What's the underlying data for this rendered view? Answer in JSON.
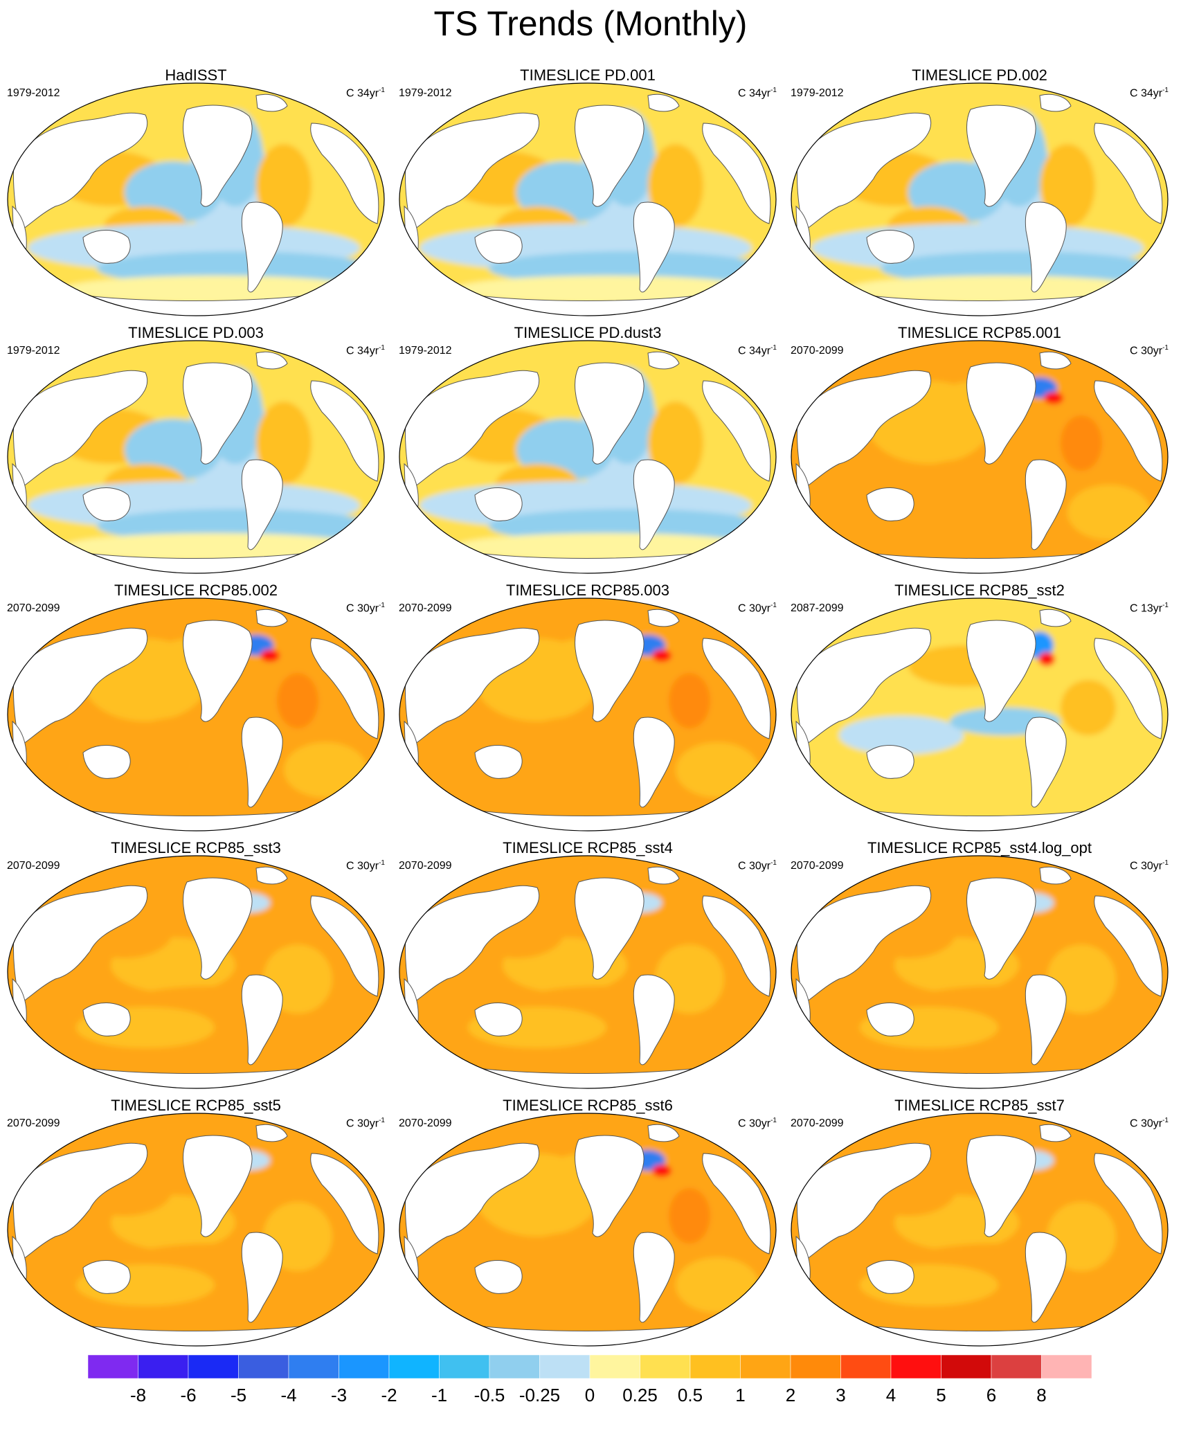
{
  "title": "TS Trends (Monthly)",
  "panels": [
    {
      "title": "HadISST",
      "period": "1979-2012",
      "units_base": "C 34yr",
      "units_exp": "-1",
      "pattern": "obs"
    },
    {
      "title": "TIMESLICE PD.001",
      "period": "1979-2012",
      "units_base": "C 34yr",
      "units_exp": "-1",
      "pattern": "obs"
    },
    {
      "title": "TIMESLICE PD.002",
      "period": "1979-2012",
      "units_base": "C 34yr",
      "units_exp": "-1",
      "pattern": "obs"
    },
    {
      "title": "TIMESLICE PD.003",
      "period": "1979-2012",
      "units_base": "C 34yr",
      "units_exp": "-1",
      "pattern": "obs"
    },
    {
      "title": "TIMESLICE PD.dust3",
      "period": "1979-2012",
      "units_base": "C 34yr",
      "units_exp": "-1",
      "pattern": "obs"
    },
    {
      "title": "TIMESLICE RCP85.001",
      "period": "2070-2099",
      "units_base": "C 30yr",
      "units_exp": "-1",
      "pattern": "warm-atl"
    },
    {
      "title": "TIMESLICE RCP85.002",
      "period": "2070-2099",
      "units_base": "C 30yr",
      "units_exp": "-1",
      "pattern": "warm-atl"
    },
    {
      "title": "TIMESLICE RCP85.003",
      "period": "2070-2099",
      "units_base": "C 30yr",
      "units_exp": "-1",
      "pattern": "warm-atl"
    },
    {
      "title": "TIMESLICE RCP85_sst2",
      "period": "2087-2099",
      "units_base": "C 13yr",
      "units_exp": "-1",
      "pattern": "mixed"
    },
    {
      "title": "TIMESLICE RCP85_sst3",
      "period": "2070-2099",
      "units_base": "C 30yr",
      "units_exp": "-1",
      "pattern": "warm"
    },
    {
      "title": "TIMESLICE RCP85_sst4",
      "period": "2070-2099",
      "units_base": "C 30yr",
      "units_exp": "-1",
      "pattern": "warm"
    },
    {
      "title": "TIMESLICE RCP85_sst4.log_opt",
      "period": "2070-2099",
      "units_base": "C 30yr",
      "units_exp": "-1",
      "pattern": "warm"
    },
    {
      "title": "TIMESLICE RCP85_sst5",
      "period": "2070-2099",
      "units_base": "C 30yr",
      "units_exp": "-1",
      "pattern": "warm"
    },
    {
      "title": "TIMESLICE RCP85_sst6",
      "period": "2070-2099",
      "units_base": "C 30yr",
      "units_exp": "-1",
      "pattern": "warm-atl"
    },
    {
      "title": "TIMESLICE RCP85_sst7",
      "period": "2070-2099",
      "units_base": "C 30yr",
      "units_exp": "-1",
      "pattern": "warm"
    }
  ],
  "colorbar": {
    "colors": [
      "#7f2af0",
      "#3a1ff0",
      "#1a2af5",
      "#3a5ee0",
      "#2f7ef0",
      "#1a96ff",
      "#10b4ff",
      "#40c0f0",
      "#90cfee",
      "#bde0f5",
      "#fff59e",
      "#ffe050",
      "#ffc020",
      "#ffa514",
      "#ff8a0a",
      "#ff4c12",
      "#ff0f0f",
      "#d20a0a",
      "#dc4040",
      "#ffb4b4"
    ],
    "labels": [
      "-8",
      "-6",
      "-5",
      "-4",
      "-3",
      "-2",
      "-1",
      "-0.5",
      "-0.25",
      "0",
      "0.25",
      "0.5",
      "1",
      "2",
      "3",
      "4",
      "5",
      "6",
      "8"
    ]
  }
}
